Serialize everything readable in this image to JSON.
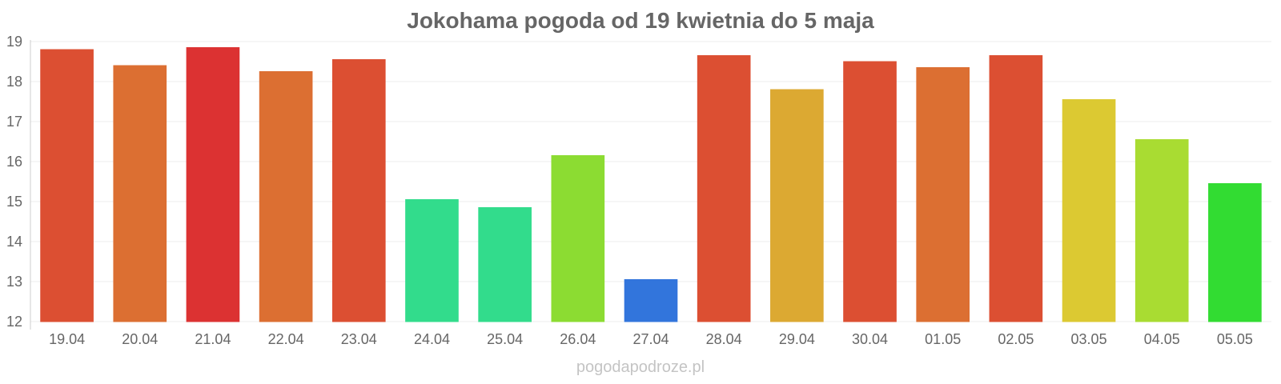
{
  "chart_data": {
    "type": "bar",
    "title": "Jokohama pogoda od 19 kwietnia do 5 maja",
    "xlabel": "",
    "ylabel": "",
    "ylim": [
      12,
      19
    ],
    "yticks": [
      12,
      13,
      14,
      15,
      16,
      17,
      18,
      19
    ],
    "grid": true,
    "categories": [
      "19.04",
      "20.04",
      "21.04",
      "22.04",
      "23.04",
      "24.04",
      "25.04",
      "26.04",
      "27.04",
      "28.04",
      "29.04",
      "30.04",
      "01.05",
      "02.05",
      "03.05",
      "04.05",
      "05.05"
    ],
    "values": [
      18.8,
      18.4,
      18.85,
      18.25,
      18.55,
      15.05,
      14.85,
      16.15,
      13.05,
      18.65,
      17.8,
      18.5,
      18.35,
      18.65,
      17.55,
      16.55,
      15.45
    ],
    "colors": [
      "#dc4f32",
      "#dc6f32",
      "#dc3232",
      "#dc6f32",
      "#dc4f32",
      "#32dc8c",
      "#32dc8c",
      "#8cdc32",
      "#3275dc",
      "#dc4f32",
      "#dca932",
      "#dc4f32",
      "#dc6f32",
      "#dc4f32",
      "#dcc932",
      "#a9dc32",
      "#32dc32"
    ]
  },
  "watermark": "pogodapodroze.pl"
}
